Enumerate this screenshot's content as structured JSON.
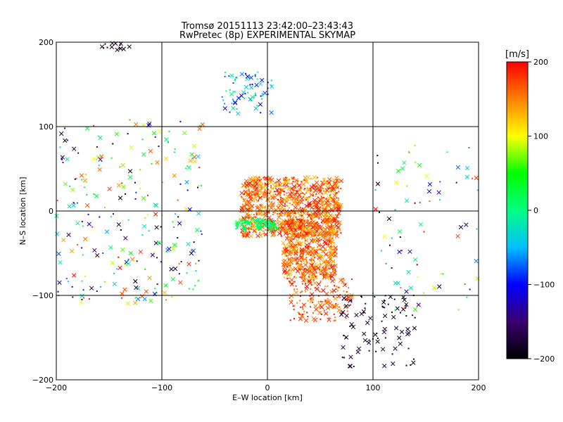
{
  "title": "Tromsø 20151113 23:42:00–23:43:43",
  "subtitle": "RwPretec (8p) EXPERIMENTAL SKYMAP",
  "chart_data": {
    "type": "scatter",
    "xlabel": "E–W location [km]",
    "ylabel": "N–S location [km]",
    "xlim": [
      -200,
      200
    ],
    "ylim": [
      -200,
      200
    ],
    "x_ticks": [
      -200,
      -100,
      0,
      100,
      200
    ],
    "y_ticks": [
      -200,
      -100,
      0,
      100,
      200
    ],
    "grid": true,
    "point_markers": [
      "x (large)",
      "dot (small)"
    ],
    "colorbar": {
      "label": "[m/s]",
      "range": [
        -200,
        200
      ],
      "ticks": [
        200,
        100,
        0,
        -100,
        -200
      ],
      "colormap": [
        "#000000",
        "#3a0070",
        "#0000ff",
        "#00c0ff",
        "#00ff80",
        "#00ff00",
        "#ffff00",
        "#ff8000",
        "#ff0000"
      ]
    },
    "clusters": [
      {
        "label": "top-left crosses",
        "x_range": [
          -160,
          -130
        ],
        "y_range": [
          190,
          200
        ],
        "velocity_range": [
          -200,
          -180
        ]
      },
      {
        "label": "upper cyan/blue group",
        "x_range": [
          -45,
          5
        ],
        "y_range": [
          115,
          165
        ],
        "velocity_range": [
          -130,
          20
        ]
      },
      {
        "label": "west scattered",
        "x_range": [
          -200,
          -60
        ],
        "y_range": [
          -110,
          110
        ],
        "velocity_range": [
          -200,
          200
        ]
      },
      {
        "label": "central dense red",
        "x_range": [
          -25,
          70
        ],
        "y_range": [
          -30,
          40
        ],
        "velocity_range": [
          120,
          200
        ]
      },
      {
        "label": "green band",
        "x_range": [
          -30,
          10
        ],
        "y_range": [
          -22,
          -10
        ],
        "velocity_range": [
          -10,
          40
        ]
      },
      {
        "label": "south-central red",
        "x_range": [
          15,
          65
        ],
        "y_range": [
          -80,
          -10
        ],
        "velocity_range": [
          120,
          200
        ]
      },
      {
        "label": "south-east red trail",
        "x_range": [
          20,
          80
        ],
        "y_range": [
          -130,
          -80
        ],
        "velocity_range": [
          140,
          200
        ]
      },
      {
        "label": "south-east black",
        "x_range": [
          70,
          140
        ],
        "y_range": [
          -185,
          -100
        ],
        "velocity_range": [
          -200,
          -160
        ]
      },
      {
        "label": "far-east scattered",
        "x_range": [
          100,
          200
        ],
        "y_range": [
          -120,
          80
        ],
        "velocity_range": [
          -200,
          200
        ]
      }
    ]
  }
}
